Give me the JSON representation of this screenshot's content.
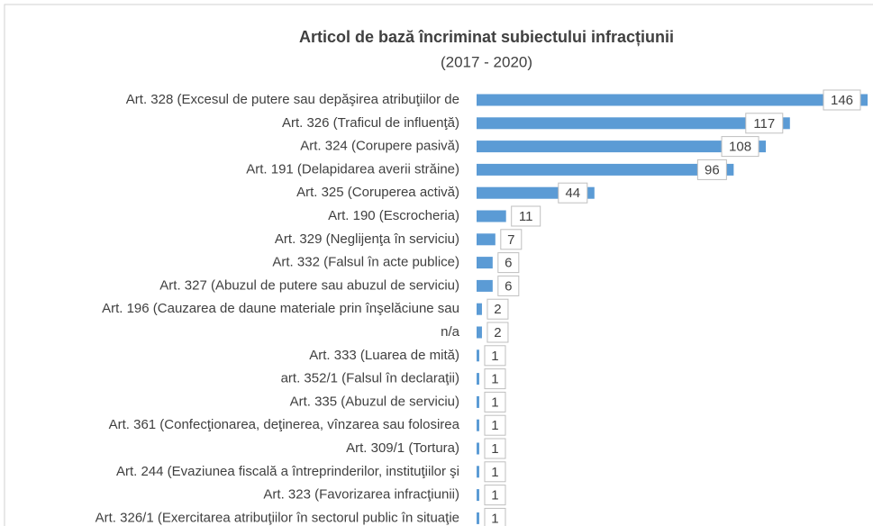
{
  "chart_data": {
    "type": "bar",
    "orientation": "horizontal",
    "title": "Articol de bază încriminat subiectului infracțiunii",
    "subtitle": "(2017 - 2020)",
    "categories": [
      "Art. 328 (Excesul de putere sau depăşirea atribuţiilor de",
      "Art. 326 (Traficul de influenţă)",
      "Art. 324 (Corupere pasivă)",
      "Art. 191 (Delapidarea averii străine)",
      "Art. 325 (Coruperea activă)",
      "Art. 190 (Escrocheria)",
      "Art. 329 (Neglijenţa în serviciu)",
      "Art. 332 (Falsul în acte publice)",
      "Art. 327 (Abuzul de putere sau abuzul de serviciu)",
      "Art. 196 (Cauzarea de daune materiale prin înşelăciune sau",
      "n/a",
      "Art. 333 (Luarea de mită)",
      "art. 352/1 (Falsul în declaraţii)",
      "Art. 335 (Abuzul de serviciu)",
      "Art. 361 (Confecţionarea, deţinerea, vînzarea sau folosirea",
      "Art. 309/1 (Tortura)",
      "Art. 244 (Evaziunea fiscală a întreprinderilor, instituţiilor şi",
      "Art. 323 (Favorizarea infracţiunii)",
      "Art. 326/1 (Exercitarea atribuţiilor în sectorul public în situaţie"
    ],
    "values": [
      146,
      117,
      108,
      96,
      44,
      11,
      7,
      6,
      6,
      2,
      2,
      1,
      1,
      1,
      1,
      1,
      1,
      1,
      1
    ],
    "color": "#5b9bd5"
  }
}
